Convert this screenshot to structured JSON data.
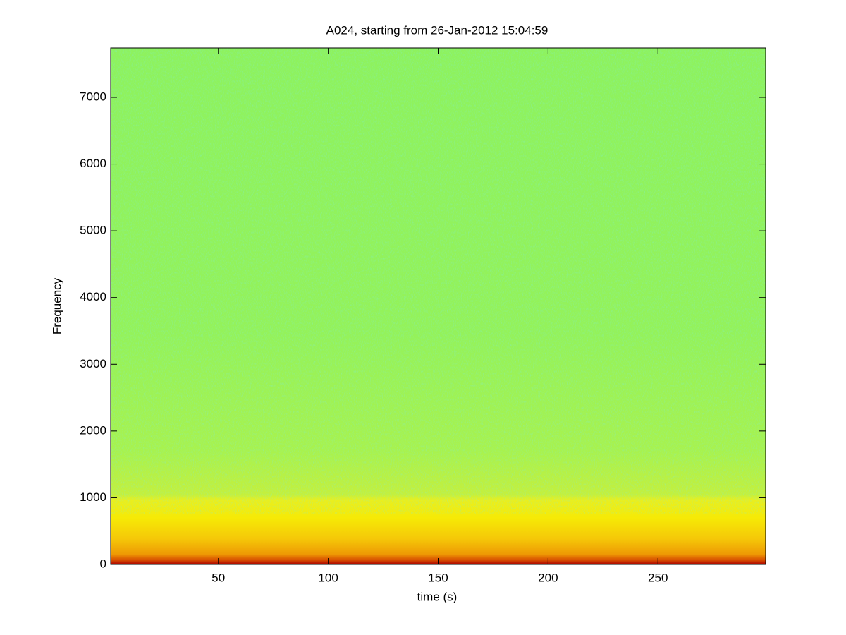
{
  "chart_data": {
    "type": "spectrogram",
    "title": "A024, starting from 26-Jan-2012 15:04:59",
    "xlabel": "time (s)",
    "ylabel": "Frequency",
    "xlim": [
      1,
      299
    ],
    "xticks": [
      50,
      100,
      150,
      200,
      250
    ],
    "ylim": [
      0,
      7740
    ],
    "yticks": [
      0,
      1000,
      2000,
      3000,
      4000,
      5000,
      6000,
      7000
    ]
  }
}
